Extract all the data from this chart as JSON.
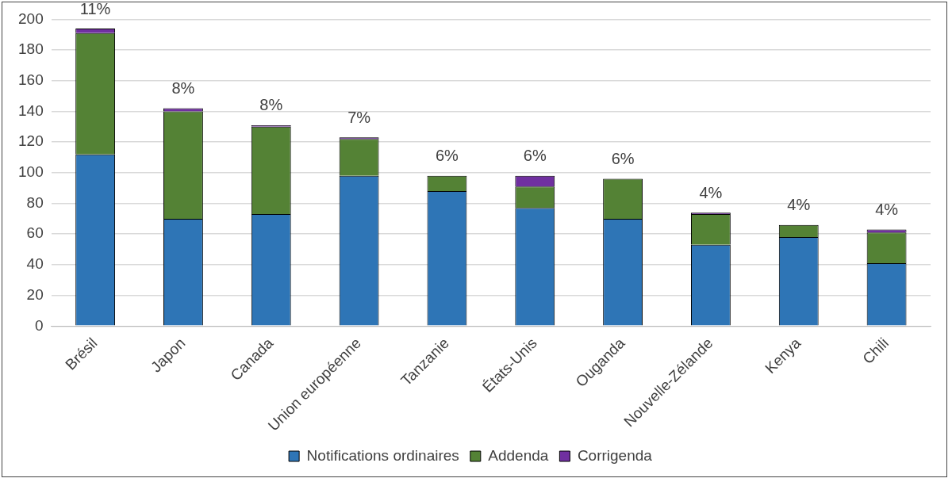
{
  "chart_data": {
    "type": "bar",
    "stacked": true,
    "categories": [
      "Brésil",
      "Japon",
      "Canada",
      "Union européenne",
      "Tanzanie",
      "États-Unis",
      "Ouganda",
      "Nouvelle-Zélande",
      "Kenya",
      "Chili"
    ],
    "series": [
      {
        "name": "Notifications ordinaires",
        "color": "#2e75b6",
        "values": [
          112,
          70,
          73,
          98,
          88,
          77,
          70,
          53,
          58,
          41
        ]
      },
      {
        "name": "Addenda",
        "color": "#548235",
        "values": [
          79,
          70,
          57,
          24,
          10,
          14,
          26,
          20,
          8,
          20
        ]
      },
      {
        "name": "Corrigenda",
        "color": "#7030a0",
        "values": [
          3,
          2,
          1,
          1,
          0,
          7,
          0,
          1,
          0,
          2
        ]
      }
    ],
    "ylim": [
      0,
      200
    ],
    "yticks": [
      0,
      20,
      40,
      60,
      80,
      100,
      120,
      140,
      160,
      180,
      200
    ],
    "grid": "y",
    "legend": "bottom",
    "annotations": [
      {
        "text": "11%",
        "x": "Brésil",
        "y": 194
      },
      {
        "text": "8%",
        "x": "Japon",
        "y": 142
      },
      {
        "text": "8%",
        "x": "Canada",
        "y": 131
      },
      {
        "text": "7%",
        "x": "Union européenne",
        "y": 123
      },
      {
        "text": "6%",
        "x": "Tanzanie",
        "y": 98
      },
      {
        "text": "6%",
        "x": "États-Unis",
        "y": 98
      },
      {
        "text": "6%",
        "x": "Ouganda",
        "y": 96
      },
      {
        "text": "4%",
        "x": "Nouvelle-Zélande",
        "y": 74
      },
      {
        "text": "4%",
        "x": "Kenya",
        "y": 66
      },
      {
        "text": "4%",
        "x": "Chili",
        "y": 63
      }
    ]
  }
}
